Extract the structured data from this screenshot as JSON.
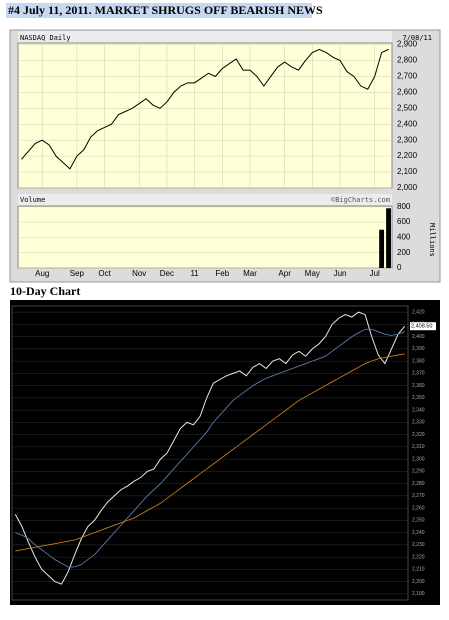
{
  "header": {
    "title": "#4 July 11, 2011. MARKET SHRUGS OFF BEARISH NEWS",
    "subtitle": "10-Day Chart"
  },
  "chart_data": [
    {
      "type": "line",
      "title": "NASDAQ Daily",
      "date": "7/08/11",
      "categories": [
        null,
        null,
        null,
        "Aug",
        null,
        null,
        null,
        null,
        "Sep",
        null,
        null,
        null,
        "Oct",
        null,
        null,
        null,
        null,
        "Nov",
        null,
        null,
        null,
        "Dec",
        null,
        null,
        null,
        "11",
        null,
        null,
        null,
        "Feb",
        null,
        null,
        null,
        "Mar",
        null,
        null,
        null,
        null,
        "Apr",
        null,
        null,
        null,
        "May",
        null,
        null,
        null,
        "Jun",
        null,
        null,
        null,
        null,
        "Jul",
        null,
        null
      ],
      "series": [
        {
          "color": "#000000",
          "values": [
            2180,
            2230,
            2280,
            2300,
            2270,
            2200,
            2160,
            2120,
            2200,
            2240,
            2320,
            2360,
            2380,
            2400,
            2460,
            2480,
            2500,
            2530,
            2560,
            2520,
            2500,
            2540,
            2600,
            2640,
            2660,
            2660,
            2690,
            2720,
            2700,
            2750,
            2780,
            2810,
            2740,
            2740,
            2700,
            2640,
            2700,
            2760,
            2790,
            2760,
            2740,
            2800,
            2850,
            2870,
            2850,
            2820,
            2800,
            2730,
            2700,
            2640,
            2620,
            2700,
            2850,
            2870
          ]
        }
      ],
      "ylim": [
        2000,
        2910
      ],
      "yticks": [
        {
          "value": 2000,
          "label": "2,000"
        },
        {
          "value": 2100,
          "label": "2,100"
        },
        {
          "value": 2200,
          "label": "2,200"
        },
        {
          "value": 2300,
          "label": "2,300"
        },
        {
          "value": 2400,
          "label": "2,400"
        },
        {
          "value": 2500,
          "label": "2,500"
        },
        {
          "value": 2600,
          "label": "2,600"
        },
        {
          "value": 2700,
          "label": "2,700"
        },
        {
          "value": 2800,
          "label": "2,800"
        },
        {
          "value": 2900,
          "label": "2,900"
        }
      ],
      "grid": true
    },
    {
      "type": "bar",
      "title": "Volume",
      "source": "©BigCharts.com",
      "ylabel": "Millions",
      "color": "#000000",
      "values": [
        0,
        0,
        0,
        0,
        0,
        0,
        0,
        0,
        0,
        0,
        0,
        0,
        0,
        0,
        0,
        0,
        0,
        0,
        0,
        0,
        0,
        0,
        0,
        0,
        0,
        0,
        0,
        0,
        0,
        0,
        0,
        0,
        0,
        0,
        0,
        0,
        0,
        0,
        0,
        0,
        0,
        0,
        0,
        0,
        0,
        0,
        0,
        0,
        0,
        0,
        0,
        0,
        500,
        780
      ],
      "ylim": [
        0,
        810
      ],
      "yticks": [
        0,
        200,
        400,
        600,
        800
      ],
      "grid": true
    },
    {
      "type": "line",
      "series": [
        {
          "color": "#e8e8e8",
          "values": [
            2255,
            2245,
            2232,
            2220,
            2210,
            2205,
            2200,
            2198,
            2208,
            2222,
            2235,
            2245,
            2250,
            2258,
            2265,
            2270,
            2275,
            2278,
            2282,
            2285,
            2290,
            2292,
            2300,
            2305,
            2315,
            2325,
            2330,
            2328,
            2335,
            2350,
            2362,
            2365,
            2368,
            2370,
            2372,
            2368,
            2375,
            2378,
            2374,
            2380,
            2382,
            2378,
            2385,
            2388,
            2384,
            2390,
            2394,
            2400,
            2410,
            2415,
            2418,
            2416,
            2420,
            2418,
            2400,
            2385,
            2378,
            2390,
            2402,
            2408.5
          ]
        },
        {
          "color": "#5a7aa8",
          "values": [
            2240,
            2238,
            2235,
            2230,
            2226,
            2222,
            2218,
            2215,
            2212,
            2212,
            2214,
            2218,
            2222,
            2228,
            2234,
            2240,
            2246,
            2252,
            2258,
            2264,
            2270,
            2275,
            2280,
            2286,
            2292,
            2298,
            2304,
            2310,
            2316,
            2322,
            2330,
            2336,
            2342,
            2348,
            2352,
            2356,
            2360,
            2363,
            2366,
            2368,
            2370,
            2372,
            2374,
            2376,
            2378,
            2380,
            2382,
            2384,
            2388,
            2392,
            2396,
            2400,
            2403,
            2406,
            2406,
            2404,
            2402,
            2401,
            2402,
            2404
          ]
        },
        {
          "color": "#c07a20",
          "values": [
            2225,
            2226,
            2227,
            2228,
            2229,
            2230,
            2231,
            2232,
            2233,
            2234,
            2236,
            2238,
            2240,
            2242,
            2244,
            2246,
            2248,
            2250,
            2252,
            2255,
            2258,
            2261,
            2264,
            2268,
            2272,
            2276,
            2280,
            2284,
            2288,
            2292,
            2296,
            2300,
            2304,
            2308,
            2312,
            2316,
            2320,
            2324,
            2328,
            2332,
            2336,
            2340,
            2344,
            2348,
            2351,
            2354,
            2357,
            2360,
            2363,
            2366,
            2369,
            2372,
            2375,
            2378,
            2380,
            2382,
            2383,
            2384,
            2385,
            2386
          ]
        }
      ],
      "annotations": [
        {
          "value": 2408.5,
          "label": "2,408.50"
        }
      ],
      "ylim": [
        2185,
        2425
      ],
      "yticks": [
        {
          "value": 2190,
          "label": "2,190"
        },
        {
          "value": 2200,
          "label": "2,200"
        },
        {
          "value": 2210,
          "label": "2,210"
        },
        {
          "value": 2220,
          "label": "2,220"
        },
        {
          "value": 2230,
          "label": "2,230"
        },
        {
          "value": 2240,
          "label": "2,240"
        },
        {
          "value": 2250,
          "label": "2,250"
        },
        {
          "value": 2260,
          "label": "2,260"
        },
        {
          "value": 2270,
          "label": "2,270"
        },
        {
          "value": 2280,
          "label": "2,280"
        },
        {
          "value": 2290,
          "label": "2,290"
        },
        {
          "value": 2300,
          "label": "2,300"
        },
        {
          "value": 2310,
          "label": "2,310"
        },
        {
          "value": 2320,
          "label": "2,320"
        },
        {
          "value": 2330,
          "label": "2,330"
        },
        {
          "value": 2340,
          "label": "2,340"
        },
        {
          "value": 2350,
          "label": "2,350"
        },
        {
          "value": 2360,
          "label": "2,360"
        },
        {
          "value": 2370,
          "label": "2,370"
        },
        {
          "value": 2380,
          "label": "2,380"
        },
        {
          "value": 2390,
          "label": "2,390"
        },
        {
          "value": 2400,
          "label": "2,400"
        },
        {
          "value": 2410,
          "label": "2,410"
        },
        {
          "value": 2420,
          "label": "2,420"
        }
      ],
      "grid": true
    }
  ]
}
